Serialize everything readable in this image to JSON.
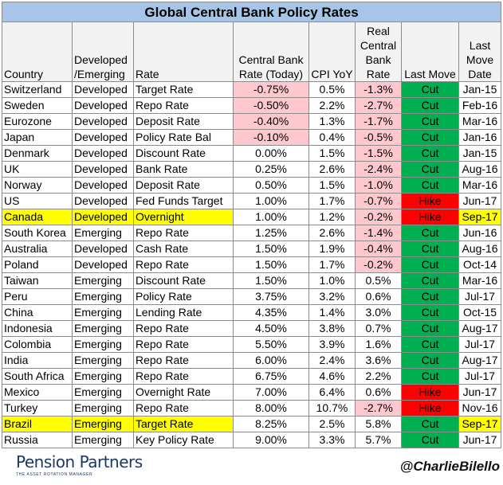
{
  "title": "Global Central Bank Policy Rates",
  "headers": {
    "country": "Country",
    "dev": "Developed /Emerging",
    "rate": "Rate",
    "cbrate": "Central Bank Rate (Today)",
    "cpi": "CPI YoY",
    "real": "Real Central Bank Rate",
    "last": "Last Move",
    "date": "Last Move Date"
  },
  "colors": {
    "title_bg": "#a6c5e7",
    "negative_bg": "#ffc7ce",
    "negative_text": "#9c0006",
    "cut_bg": "#00b050",
    "hike_bg": "#ff0000",
    "highlight_bg": "#ffff00"
  },
  "rows": [
    {
      "country": "Switzerland",
      "dev": "Developed",
      "rate": "Target Rate",
      "cb": "-0.75%",
      "cpi": "0.5%",
      "real": "-1.3%",
      "move": "Cut",
      "date": "Jan-15",
      "hl": false
    },
    {
      "country": "Sweden",
      "dev": "Developed",
      "rate": "Repo Rate",
      "cb": "-0.50%",
      "cpi": "2.2%",
      "real": "-2.7%",
      "move": "Cut",
      "date": "Feb-16",
      "hl": false
    },
    {
      "country": "Eurozone",
      "dev": "Developed",
      "rate": "Deposit Rate",
      "cb": "-0.40%",
      "cpi": "1.3%",
      "real": "-1.7%",
      "move": "Cut",
      "date": "Mar-16",
      "hl": false
    },
    {
      "country": "Japan",
      "dev": "Developed",
      "rate": "Policy Rate Bal",
      "cb": "-0.10%",
      "cpi": "0.4%",
      "real": "-0.5%",
      "move": "Cut",
      "date": "Jan-16",
      "hl": false
    },
    {
      "country": "Denmark",
      "dev": "Developed",
      "rate": "Discount Rate",
      "cb": "0.00%",
      "cpi": "1.5%",
      "real": "-1.5%",
      "move": "Cut",
      "date": "Jan-15",
      "hl": false
    },
    {
      "country": "UK",
      "dev": "Developed",
      "rate": "Bank Rate",
      "cb": "0.25%",
      "cpi": "2.6%",
      "real": "-2.4%",
      "move": "Cut",
      "date": "Aug-16",
      "hl": false
    },
    {
      "country": "Norway",
      "dev": "Developed",
      "rate": "Deposit Rate",
      "cb": "0.50%",
      "cpi": "1.5%",
      "real": "-1.0%",
      "move": "Cut",
      "date": "Mar-16",
      "hl": false
    },
    {
      "country": "US",
      "dev": "Developed",
      "rate": "Fed Funds Target",
      "cb": "1.00%",
      "cpi": "1.7%",
      "real": "-0.7%",
      "move": "Hike",
      "date": "Jun-17",
      "hl": false
    },
    {
      "country": "Canada",
      "dev": "Developed",
      "rate": "Overnight",
      "cb": "1.00%",
      "cpi": "1.2%",
      "real": "-0.2%",
      "move": "Hike",
      "date": "Sep-17",
      "hl": true
    },
    {
      "country": "South Korea",
      "dev": "Emerging",
      "rate": "Repo Rate",
      "cb": "1.25%",
      "cpi": "2.6%",
      "real": "-1.4%",
      "move": "Cut",
      "date": "Jun-16",
      "hl": false
    },
    {
      "country": "Australia",
      "dev": "Developed",
      "rate": "Cash Rate",
      "cb": "1.50%",
      "cpi": "1.9%",
      "real": "-0.4%",
      "move": "Cut",
      "date": "Aug-16",
      "hl": false
    },
    {
      "country": "Poland",
      "dev": "Developed",
      "rate": "Repo Rate",
      "cb": "1.50%",
      "cpi": "1.7%",
      "real": "-0.2%",
      "move": "Cut",
      "date": "Oct-14",
      "hl": false
    },
    {
      "country": "Taiwan",
      "dev": "Emerging",
      "rate": "Discount Rate",
      "cb": "1.50%",
      "cpi": "1.0%",
      "real": "0.5%",
      "move": "Cut",
      "date": "Mar-16",
      "hl": false
    },
    {
      "country": "Peru",
      "dev": "Emerging",
      "rate": "Policy Rate",
      "cb": "3.75%",
      "cpi": "3.2%",
      "real": "0.6%",
      "move": "Cut",
      "date": "Jul-17",
      "hl": false
    },
    {
      "country": "China",
      "dev": "Emerging",
      "rate": "Lending Rate",
      "cb": "4.35%",
      "cpi": "1.4%",
      "real": "3.0%",
      "move": "Cut",
      "date": "Oct-15",
      "hl": false
    },
    {
      "country": "Indonesia",
      "dev": "Emerging",
      "rate": "Repo Rate",
      "cb": "4.50%",
      "cpi": "3.8%",
      "real": "0.7%",
      "move": "Cut",
      "date": "Aug-17",
      "hl": false
    },
    {
      "country": "Colombia",
      "dev": "Emerging",
      "rate": "Repo Rate",
      "cb": "5.50%",
      "cpi": "3.9%",
      "real": "1.6%",
      "move": "Cut",
      "date": "Jul-17",
      "hl": false
    },
    {
      "country": "India",
      "dev": "Emerging",
      "rate": "Repo Rate",
      "cb": "6.00%",
      "cpi": "2.4%",
      "real": "3.6%",
      "move": "Cut",
      "date": "Aug-17",
      "hl": false
    },
    {
      "country": "South Africa",
      "dev": "Emerging",
      "rate": "Repo Rate",
      "cb": "6.75%",
      "cpi": "4.6%",
      "real": "2.2%",
      "move": "Cut",
      "date": "Jul-17",
      "hl": false
    },
    {
      "country": "Mexico",
      "dev": "Emerging",
      "rate": "Overnight Rate",
      "cb": "7.00%",
      "cpi": "6.4%",
      "real": "0.6%",
      "move": "Hike",
      "date": "Jun-17",
      "hl": false
    },
    {
      "country": "Turkey",
      "dev": "Emerging",
      "rate": "Repo Rate",
      "cb": "8.00%",
      "cpi": "10.7%",
      "real": "-2.7%",
      "move": "Hike",
      "date": "Nov-16",
      "hl": false
    },
    {
      "country": "Brazil",
      "dev": "Emerging",
      "rate": "Target Rate",
      "cb": "8.25%",
      "cpi": "2.5%",
      "real": "5.8%",
      "move": "Cut",
      "date": "Sep-17",
      "hl": true
    },
    {
      "country": "Russia",
      "dev": "Emerging",
      "rate": "Key Policy Rate",
      "cb": "9.00%",
      "cpi": "3.3%",
      "real": "5.7%",
      "move": "Cut",
      "date": "Jun-17",
      "hl": false
    }
  ],
  "footer": {
    "logo_name": "Pension Partners",
    "logo_tagline": "THE ASSET ROTATION MANAGER",
    "handle": "@CharlieBilello"
  }
}
